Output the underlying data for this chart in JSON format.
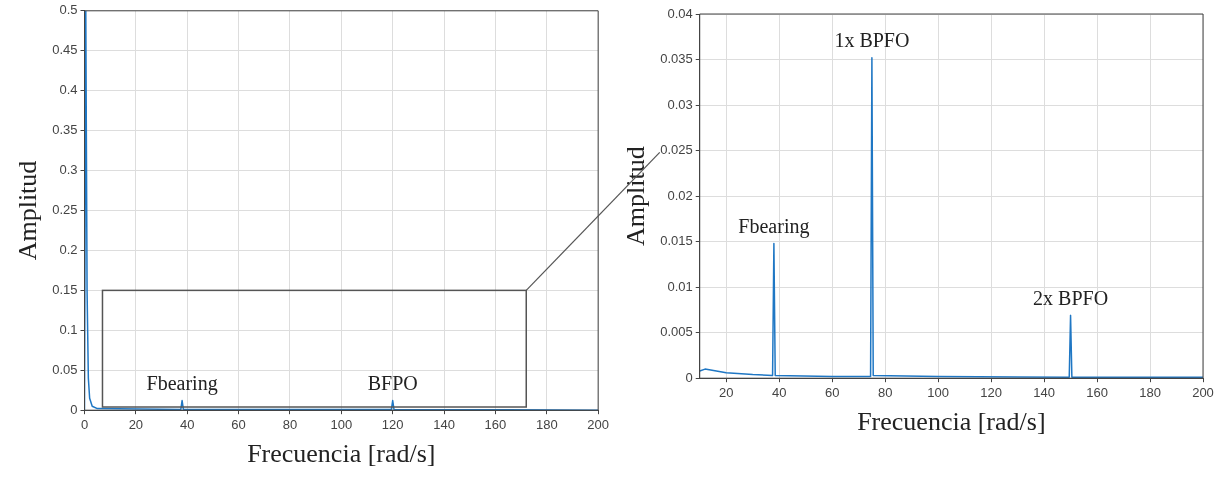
{
  "chart_data": [
    {
      "type": "line",
      "xlabel": "Frecuencia [rad/s]",
      "ylabel": "Amplitud",
      "xlim": [
        0,
        200
      ],
      "xticks": [
        0,
        20,
        40,
        60,
        80,
        100,
        120,
        140,
        160,
        180,
        200
      ],
      "ylim": [
        0,
        0.5
      ],
      "yticks": [
        0,
        0.05,
        0.1,
        0.15,
        0.2,
        0.25,
        0.3,
        0.35,
        0.4,
        0.45,
        0.5
      ],
      "grid": true,
      "marker": "none",
      "line_style": "solid",
      "series": [
        {
          "color": "#1f77c4",
          "x": [
            0,
            0.5,
            1,
            1.5,
            2,
            3,
            5,
            37.5,
            38,
            38.5,
            119.5,
            120,
            120.5,
            200
          ],
          "values": [
            0,
            0.5,
            0.15,
            0.04,
            0.015,
            0.005,
            0.002,
            0.001,
            0.012,
            0.001,
            0.001,
            0.012,
            0.001,
            0
          ]
        }
      ],
      "annotations": [
        {
          "text": "Fbearing",
          "x": 38,
          "y": 0.012
        },
        {
          "text": "BFPO",
          "x": 120,
          "y": 0.012
        }
      ]
    },
    {
      "type": "line",
      "xlabel": "Frecuencia [rad/s]",
      "ylabel": "Amplitud",
      "xlim": [
        10,
        200
      ],
      "xticks": [
        20,
        40,
        60,
        80,
        100,
        120,
        140,
        160,
        180,
        200
      ],
      "ylim": [
        0,
        0.04
      ],
      "yticks": [
        0,
        0.005,
        0.01,
        0.015,
        0.02,
        0.025,
        0.03,
        0.035,
        0.04
      ],
      "grid": true,
      "marker": "none",
      "line_style": "solid",
      "series": [
        {
          "color": "#1f77c4",
          "x": [
            10,
            12,
            20,
            30,
            37.5,
            38,
            38.5,
            60,
            74.5,
            75,
            75.5,
            100,
            149.5,
            150,
            150.5,
            200
          ],
          "values": [
            0.0008,
            0.001,
            0.0006,
            0.0004,
            0.0003,
            0.0148,
            0.0003,
            0.0002,
            0.0002,
            0.0352,
            0.0003,
            0.0002,
            0.0001,
            0.0069,
            0.0001,
            0.0001
          ]
        }
      ],
      "annotations": [
        {
          "text": "Fbearing",
          "x": 38,
          "y": 0.0148
        },
        {
          "text": "1x BPFO",
          "x": 75,
          "y": 0.0352
        },
        {
          "text": "2x BPFO",
          "x": 150,
          "y": 0.0069
        }
      ]
    }
  ]
}
